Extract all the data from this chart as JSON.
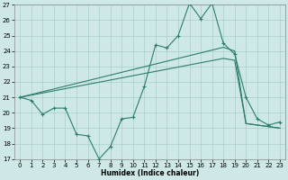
{
  "x": [
    0,
    1,
    2,
    3,
    4,
    5,
    6,
    7,
    8,
    9,
    10,
    11,
    12,
    13,
    14,
    15,
    16,
    17,
    18,
    19,
    20,
    21,
    22,
    23
  ],
  "y_main": [
    21.0,
    20.8,
    19.9,
    20.3,
    20.3,
    18.6,
    18.5,
    17.0,
    17.8,
    19.6,
    19.7,
    21.7,
    24.4,
    24.2,
    25.0,
    27.1,
    26.1,
    27.1,
    24.5,
    23.8,
    21.0,
    19.6,
    19.2,
    19.4
  ],
  "y_trend1": [
    21.0,
    21.18,
    21.36,
    21.54,
    21.72,
    21.9,
    22.08,
    22.26,
    22.44,
    22.62,
    22.8,
    22.98,
    23.16,
    23.34,
    23.52,
    23.7,
    23.88,
    24.06,
    24.24,
    24.0,
    19.3,
    19.2,
    19.1,
    19.0
  ],
  "y_trend2": [
    21.0,
    21.14,
    21.28,
    21.42,
    21.56,
    21.7,
    21.84,
    21.98,
    22.12,
    22.26,
    22.4,
    22.54,
    22.68,
    22.82,
    22.96,
    23.1,
    23.24,
    23.38,
    23.52,
    23.4,
    19.3,
    19.2,
    19.1,
    19.0
  ],
  "ylim": [
    17,
    27
  ],
  "yticks": [
    17,
    18,
    19,
    20,
    21,
    22,
    23,
    24,
    25,
    26,
    27
  ],
  "xticks": [
    0,
    1,
    2,
    3,
    4,
    5,
    6,
    7,
    8,
    9,
    10,
    11,
    12,
    13,
    14,
    15,
    16,
    17,
    18,
    19,
    20,
    21,
    22,
    23
  ],
  "xlabel": "Humidex (Indice chaleur)",
  "color": "#2d7d6e",
  "bg_color": "#cde8e6",
  "grid_color": "#aacfcc"
}
